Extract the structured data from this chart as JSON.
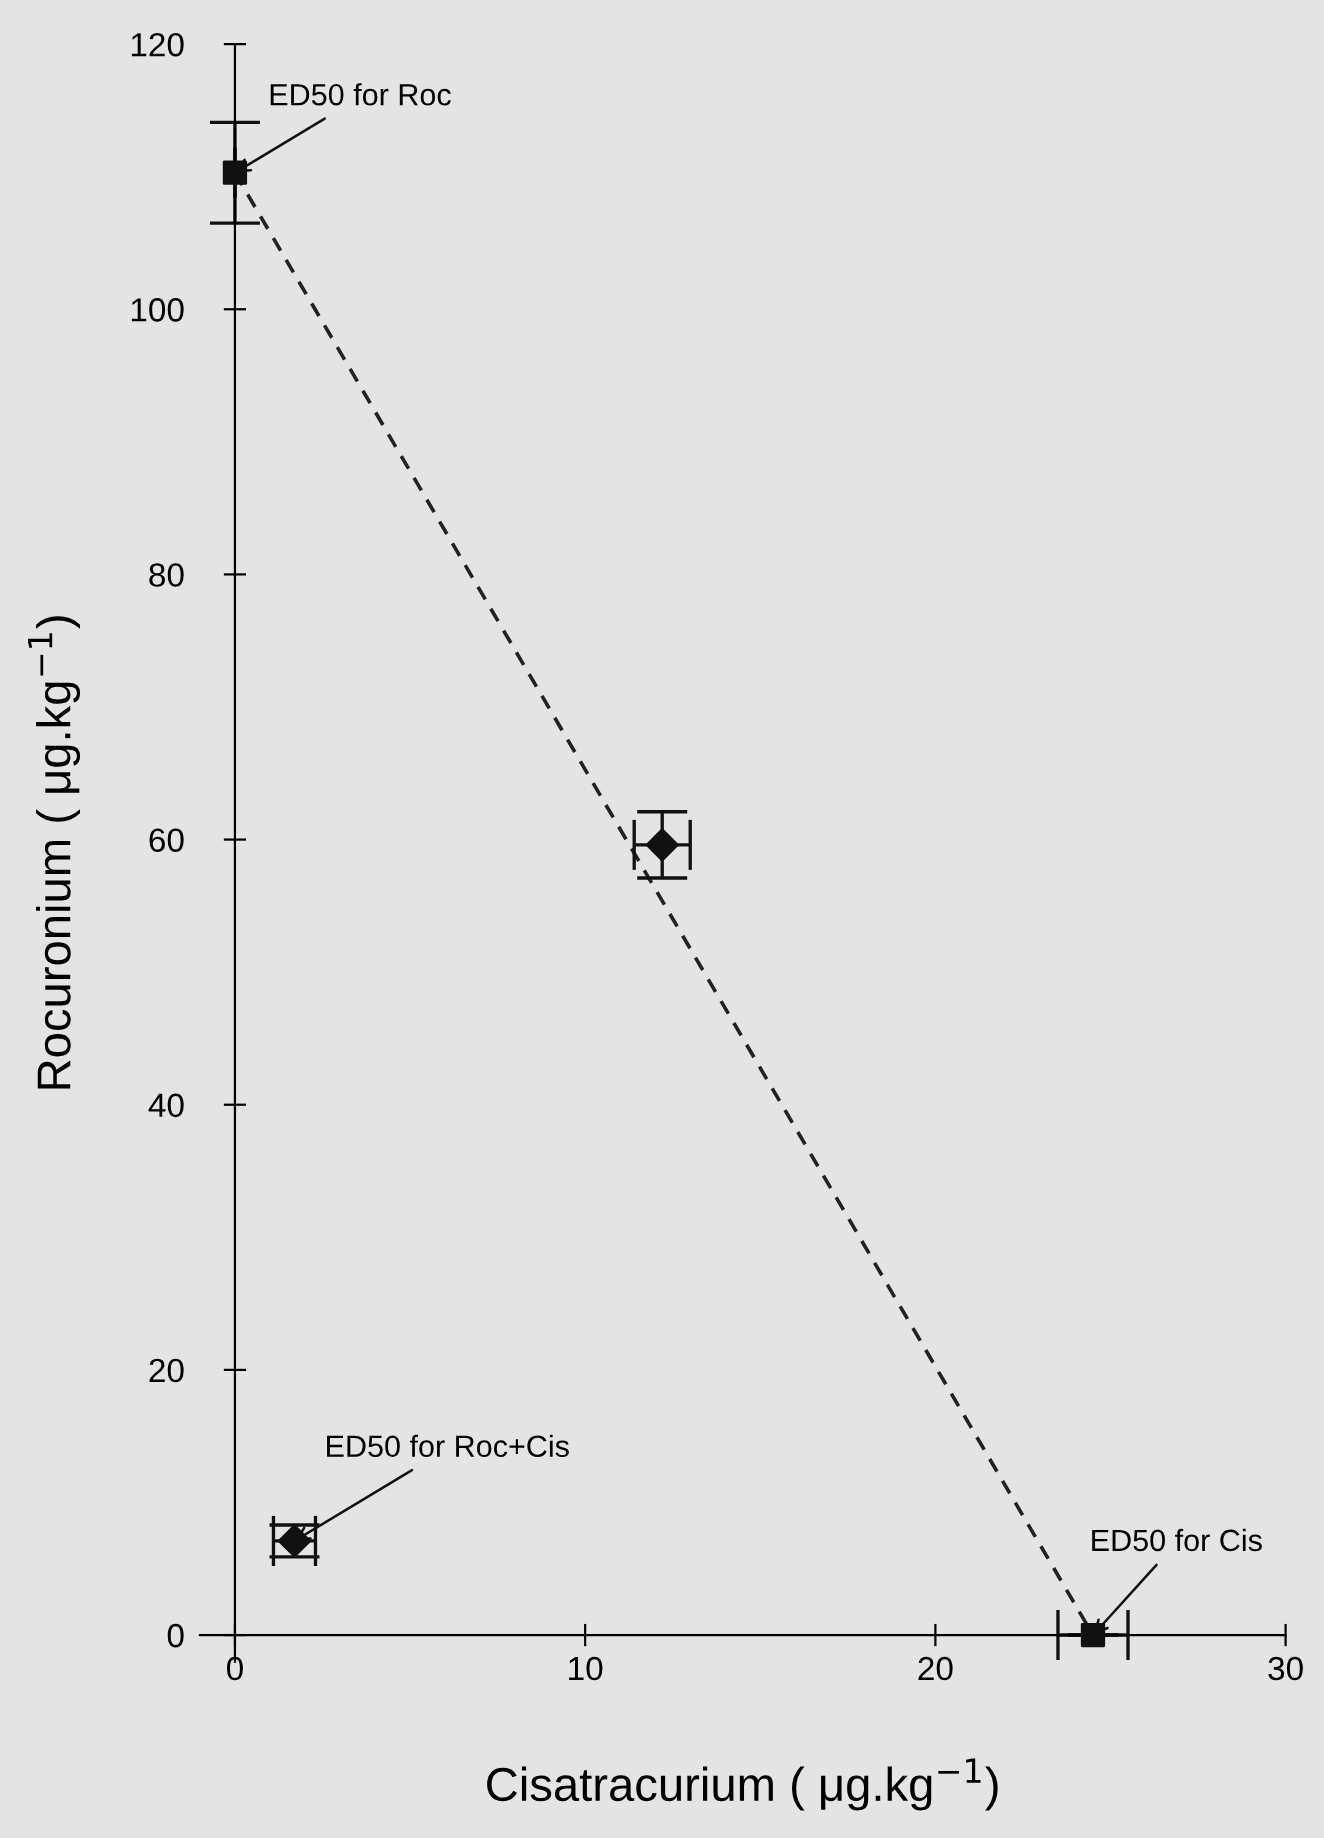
{
  "chart_data": {
    "type": "scatter",
    "xlabel": "Cisatracurium ( μg.kg$^{−1}$)",
    "ylabel": "Rocuronium ( μg.kg$^{−1}$)",
    "series": [
      {
        "type": "line",
        "x": [
          0,
          24.5
        ],
        "values": [
          110.3,
          0
        ],
        "color": "#222222",
        "line_style": "dashed",
        "marker": "none"
      },
      {
        "type": "scatter",
        "x": [
          0,
          24.5
        ],
        "values": [
          110.3,
          0
        ],
        "color": "#111111",
        "marker": "square",
        "errors": [
          3.8,
          null
        ],
        "xerrors": [
          null,
          1.0
        ]
      },
      {
        "type": "scatter",
        "x": [
          1.7,
          12.2
        ],
        "values": [
          7.1,
          59.6
        ],
        "color": "#111111",
        "marker": "diamond",
        "errors": [
          1.2,
          2.5
        ],
        "xerrors": [
          0.6,
          0.8
        ]
      }
    ],
    "annotations": [
      {
        "text": "ED50 for Roc",
        "x": 0,
        "y": 110.3
      },
      {
        "text": "ED50 for Cis",
        "x": 24.5,
        "y": 0
      },
      {
        "text": "ED50 for Roc+Cis",
        "x": 1.7,
        "y": 7.1
      }
    ],
    "xlim": [
      -1,
      30
    ],
    "ylim": [
      -2,
      120
    ],
    "xticks": [
      0,
      10,
      20,
      30
    ],
    "yticks": [
      0,
      20,
      40,
      60,
      80,
      100,
      120
    ],
    "grid": false,
    "legend": false
  }
}
